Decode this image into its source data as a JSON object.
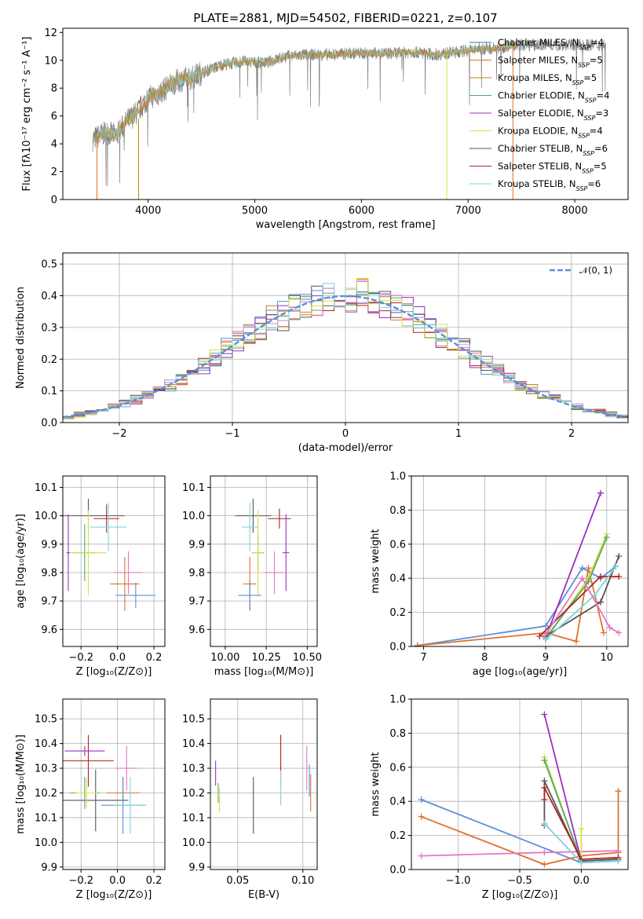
{
  "figure": {
    "title": "PLATE=2881, MJD=54502, FIBERID=0221, z=0.107"
  },
  "colors": {
    "chabrier_miles": "#1f77b4",
    "salpeter_miles": "#e0712a",
    "kroupa_miles": "#b8860b",
    "chabrier_elodie": "#55a868",
    "salpeter_elodie": "#9b30c0",
    "kroupa_elodie": "#d8e040",
    "chabrier_stelib": "#555555",
    "salpeter_stelib": "#b22222",
    "kroupa_stelib": "#7fd3dc",
    "steelblue": "#5b8fd9",
    "pink": "#e377c2",
    "olive": "#b5c94a",
    "dashed_normal": "#5b8fd9"
  },
  "chart_data": [
    {
      "id": "spectrum",
      "type": "line",
      "title": "PLATE=2881, MJD=54502, FIBERID=0221, z=0.107",
      "xlabel": "wavelength [Angstrom, rest frame]",
      "ylabel": "Flux [fλ10⁻¹⁷ erg cm⁻² s⁻¹ A⁻¹]",
      "xlim": [
        3200,
        8500
      ],
      "ylim": [
        0,
        12.3
      ],
      "xticks": [
        "4000",
        "5000",
        "6000",
        "7000",
        "8000"
      ],
      "yticks": [
        "0",
        "2",
        "4",
        "6",
        "8",
        "10",
        "12"
      ],
      "legend_position": "right",
      "series": [
        {
          "name": "Chabrier MILES, N_SSP=4"
        },
        {
          "name": "Salpeter MILES, N_SSP=5"
        },
        {
          "name": "Kroupa MILES, N_SSP=5"
        },
        {
          "name": "Chabrier ELODIE, N_SSP=4"
        },
        {
          "name": "Salpeter ELODIE, N_SSP=3"
        },
        {
          "name": "Kroupa ELODIE, N_SSP=4"
        },
        {
          "name": "Chabrier STELIB, N_SSP=6"
        },
        {
          "name": "Salpeter STELIB, N_SSP=5"
        },
        {
          "name": "Kroupa STELIB, N_SSP=6"
        }
      ],
      "continuum": {
        "x": [
          3480,
          3600,
          3700,
          3800,
          3900,
          4000,
          4100,
          4200,
          4300,
          4400,
          4500,
          4700,
          4900,
          5100,
          5300,
          5500,
          5700,
          5900,
          6100,
          6300,
          6500,
          6700,
          6900,
          7100,
          7300,
          7450
        ],
        "y": [
          4.3,
          4.8,
          4.6,
          5.6,
          6.3,
          7.3,
          7.6,
          8.2,
          8.6,
          8.7,
          9.1,
          9.7,
          9.9,
          9.8,
          10.3,
          10.4,
          10.4,
          10.5,
          10.5,
          10.5,
          10.6,
          10.4,
          10.6,
          10.8,
          10.9,
          11.1
        ]
      }
    },
    {
      "id": "residuals",
      "type": "histogram",
      "xlabel": "(data-model)/error",
      "ylabel": "Normed distribution",
      "xlim": [
        -2.5,
        2.5
      ],
      "ylim": [
        0,
        0.535
      ],
      "xticks": [
        "−2",
        "−1",
        "0",
        "1",
        "2"
      ],
      "yticks": [
        "0.0",
        "0.1",
        "0.2",
        "0.3",
        "0.4",
        "0.5"
      ],
      "legend": "𝒩(0, 1)",
      "normal": {
        "mean": 0,
        "sigma": 1
      },
      "bin_width": 0.1
    },
    {
      "id": "age-vs-Z",
      "type": "errorbar",
      "xlabel": "Z [log₁₀(Z/Z⊙)]",
      "ylabel": "age  [log₁₀(age/yr)]",
      "xlim": [
        -0.3,
        0.26
      ],
      "ylim": [
        9.54,
        10.14
      ],
      "xticks": [
        "−0.2",
        "0.0",
        "0.2"
      ],
      "yticks": [
        "9.6",
        "9.7",
        "9.8",
        "9.9",
        "10.0",
        "10.1"
      ],
      "points": [
        {
          "x": -0.16,
          "y": 10.0,
          "xerr": 0.4,
          "yerr": 0.12,
          "c": "chabrier_stelib"
        },
        {
          "x": -0.06,
          "y": 9.99,
          "xerr": 0.14,
          "yerr": 0.1,
          "c": "salpeter_stelib"
        },
        {
          "x": -0.05,
          "y": 9.96,
          "xerr": 0.2,
          "yerr": 0.17,
          "c": "kroupa_stelib"
        },
        {
          "x": -0.18,
          "y": 9.87,
          "xerr": 0.13,
          "yerr": 0.2,
          "c": "chabrier_elodie"
        },
        {
          "x": -0.27,
          "y": 9.87,
          "xerr": 0.02,
          "yerr": 0.27,
          "c": "salpeter_elodie"
        },
        {
          "x": -0.16,
          "y": 9.87,
          "xerr": 0.2,
          "yerr": 0.3,
          "c": "kroupa_elodie"
        },
        {
          "x": 0.06,
          "y": 9.8,
          "xerr": 0.16,
          "yerr": 0.15,
          "c": "pink"
        },
        {
          "x": 0.04,
          "y": 9.76,
          "xerr": 0.16,
          "yerr": 0.19,
          "c": "salpeter_miles"
        },
        {
          "x": 0.1,
          "y": 9.72,
          "xerr": 0.22,
          "yerr": 0.09,
          "c": "steelblue"
        }
      ]
    },
    {
      "id": "age-vs-mass",
      "type": "errorbar",
      "xlabel": "mass [log₁₀(M/M⊙)]",
      "ylabel": "",
      "xlim": [
        9.91,
        10.56
      ],
      "ylim": [
        9.54,
        10.14
      ],
      "xticks": [
        "10.00",
        "10.25",
        "10.50"
      ],
      "yticks": [
        "9.6",
        "9.7",
        "9.8",
        "9.9",
        "10.0",
        "10.1"
      ],
      "points": [
        {
          "x": 10.17,
          "y": 10.0,
          "xerr": 0.22,
          "yerr": 0.12,
          "c": "chabrier_stelib"
        },
        {
          "x": 10.33,
          "y": 9.99,
          "xerr": 0.14,
          "yerr": 0.07,
          "c": "salpeter_stelib"
        },
        {
          "x": 10.15,
          "y": 9.96,
          "xerr": 0.1,
          "yerr": 0.17,
          "c": "kroupa_stelib"
        },
        {
          "x": 10.2,
          "y": 9.87,
          "xerr": 0.07,
          "yerr": 0.13,
          "c": "chabrier_elodie"
        },
        {
          "x": 10.37,
          "y": 9.87,
          "xerr": 0.04,
          "yerr": 0.27,
          "c": "salpeter_elodie"
        },
        {
          "x": 10.2,
          "y": 9.87,
          "xerr": 0.06,
          "yerr": 0.3,
          "c": "kroupa_elodie"
        },
        {
          "x": 10.3,
          "y": 9.8,
          "xerr": 0.12,
          "yerr": 0.15,
          "c": "pink"
        },
        {
          "x": 10.15,
          "y": 9.76,
          "xerr": 0.08,
          "yerr": 0.19,
          "c": "salpeter_miles"
        },
        {
          "x": 10.15,
          "y": 9.72,
          "xerr": 0.14,
          "yerr": 0.1,
          "c": "steelblue"
        }
      ]
    },
    {
      "id": "weight-vs-age",
      "type": "line",
      "xlabel": "age  [log₁₀(age/yr)]",
      "ylabel": "mass weight",
      "xlim": [
        6.8,
        10.35
      ],
      "ylim": [
        0,
        1.0
      ],
      "xticks": [
        "7",
        "8",
        "9",
        "10"
      ],
      "yticks": [
        "0.0",
        "0.2",
        "0.4",
        "0.6",
        "0.8",
        "1.0"
      ],
      "series": [
        {
          "c": "steelblue",
          "x": [
            6.9,
            9.0,
            9.6,
            9.9,
            10.15
          ],
          "y": [
            0.005,
            0.12,
            0.46,
            0.4,
            0.47
          ]
        },
        {
          "c": "salpeter_miles",
          "x": [
            6.9,
            9.0,
            9.5,
            9.7,
            9.95
          ],
          "y": [
            0.005,
            0.08,
            0.03,
            0.46,
            0.08
          ]
        },
        {
          "c": "salpeter_elodie",
          "x": [
            9.0,
            9.9
          ],
          "y": [
            0.05,
            0.9
          ]
        },
        {
          "c": "kroupa_elodie",
          "x": [
            9.0,
            9.7,
            10.0
          ],
          "y": [
            0.04,
            0.4,
            0.66
          ]
        },
        {
          "c": "chabrier_elodie",
          "x": [
            9.0,
            9.7,
            10.0
          ],
          "y": [
            0.05,
            0.38,
            0.64
          ]
        },
        {
          "c": "chabrier_stelib",
          "x": [
            9.0,
            9.9,
            10.2
          ],
          "y": [
            0.06,
            0.26,
            0.53
          ]
        },
        {
          "c": "salpeter_stelib",
          "x": [
            8.9,
            9.9,
            10.2
          ],
          "y": [
            0.06,
            0.41,
            0.41
          ]
        },
        {
          "c": "kroupa_stelib",
          "x": [
            9.0,
            9.8,
            10.15
          ],
          "y": [
            0.04,
            0.3,
            0.47
          ]
        },
        {
          "c": "pink",
          "x": [
            9.0,
            9.6,
            10.05,
            10.2
          ],
          "y": [
            0.07,
            0.4,
            0.11,
            0.08
          ]
        }
      ]
    },
    {
      "id": "mass-vs-Z",
      "type": "errorbar",
      "xlabel": "Z [log₁₀(Z/Z⊙)]",
      "ylabel": "mass [log₁₀(M/M⊙)]",
      "xlim": [
        -0.3,
        0.26
      ],
      "ylim": [
        9.89,
        10.58
      ],
      "xticks": [
        "−0.2",
        "0.0",
        "0.2"
      ],
      "yticks": [
        "9.9",
        "10.0",
        "10.1",
        "10.2",
        "10.3",
        "10.4",
        "10.5"
      ],
      "points": [
        {
          "x": -0.16,
          "y": 10.33,
          "xerr": 0.28,
          "yerr": 0.21,
          "c": "salpeter_stelib"
        },
        {
          "x": -0.12,
          "y": 10.17,
          "xerr": 0.36,
          "yerr": 0.25,
          "c": "chabrier_stelib"
        },
        {
          "x": -0.18,
          "y": 10.37,
          "xerr": 0.22,
          "yerr": 0.04,
          "c": "salpeter_elodie"
        },
        {
          "x": -0.18,
          "y": 10.2,
          "xerr": 0.16,
          "yerr": 0.13,
          "c": "chabrier_elodie"
        },
        {
          "x": -0.17,
          "y": 10.2,
          "xerr": 0.12,
          "yerr": 0.12,
          "c": "kroupa_elodie"
        },
        {
          "x": 0.05,
          "y": 10.3,
          "xerr": 0.12,
          "yerr": 0.18,
          "c": "pink"
        },
        {
          "x": 0.03,
          "y": 10.2,
          "xerr": 0.18,
          "yerr": 0.12,
          "c": "salpeter_miles"
        },
        {
          "x": 0.03,
          "y": 10.15,
          "xerr": 0.24,
          "yerr": 0.23,
          "c": "steelblue"
        },
        {
          "x": 0.07,
          "y": 10.15,
          "xerr": 0.18,
          "yerr": 0.23,
          "c": "kroupa_stelib"
        }
      ]
    },
    {
      "id": "mass-vs-EBV",
      "type": "errorbar",
      "xlabel": "E(B-V)",
      "ylabel": "",
      "xlim": [
        0.029,
        0.111
      ],
      "ylim": [
        9.89,
        10.58
      ],
      "xticks": [
        "0.05",
        "0.10"
      ],
      "yticks": [
        "9.9",
        "10.0",
        "10.1",
        "10.2",
        "10.3",
        "10.4",
        "10.5"
      ],
      "points": [
        {
          "x": 0.033,
          "y": 10.28,
          "yerr": 0.1,
          "c": "salpeter_elodie"
        },
        {
          "x": 0.035,
          "y": 10.2,
          "yerr": 0.08,
          "c": "chabrier_elodie"
        },
        {
          "x": 0.036,
          "y": 10.17,
          "yerr": 0.1,
          "c": "kroupa_elodie"
        },
        {
          "x": 0.062,
          "y": 10.15,
          "yerr": 0.23,
          "c": "chabrier_stelib"
        },
        {
          "x": 0.083,
          "y": 10.33,
          "yerr": 0.21,
          "c": "salpeter_stelib"
        },
        {
          "x": 0.083,
          "y": 10.22,
          "yerr": 0.14,
          "c": "kroupa_stelib"
        },
        {
          "x": 0.103,
          "y": 10.3,
          "yerr": 0.18,
          "c": "pink"
        },
        {
          "x": 0.106,
          "y": 10.2,
          "yerr": 0.15,
          "c": "salpeter_miles"
        },
        {
          "x": 0.105,
          "y": 10.25,
          "yerr": 0.13,
          "c": "steelblue"
        }
      ]
    },
    {
      "id": "weight-vs-Z",
      "type": "line",
      "xlabel": "Z [log₁₀(Z/Z⊙)]",
      "ylabel": "mass weight",
      "xlim": [
        -1.38,
        0.38
      ],
      "ylim": [
        0,
        1.0
      ],
      "xticks": [
        "−1.0",
        "−0.5",
        "0.0"
      ],
      "yticks": [
        "0.0",
        "0.2",
        "0.4",
        "0.6",
        "0.8",
        "1.0"
      ],
      "series": [
        {
          "c": "steelblue",
          "x": [
            -1.3,
            0.0,
            0.3
          ],
          "y": [
            0.41,
            0.04,
            0.05
          ]
        },
        {
          "c": "salpeter_miles",
          "x": [
            -1.3,
            -0.3,
            0.0,
            0.3,
            0.3
          ],
          "y": [
            0.31,
            0.03,
            0.08,
            0.1,
            0.46
          ]
        },
        {
          "c": "pink",
          "x": [
            -1.3,
            -0.3,
            0.3
          ],
          "y": [
            0.08,
            0.1,
            0.11
          ]
        },
        {
          "c": "salpeter_elodie",
          "x": [
            -0.3,
            0.0
          ],
          "y": [
            0.91,
            0.05
          ]
        },
        {
          "c": "kroupa_elodie",
          "x": [
            -0.3,
            0.0,
            0.0
          ],
          "y": [
            0.66,
            0.04,
            0.24
          ]
        },
        {
          "c": "chabrier_elodie",
          "x": [
            -0.3,
            0.0
          ],
          "y": [
            0.64,
            0.05
          ]
        },
        {
          "c": "chabrier_stelib",
          "x": [
            -0.3,
            -0.3,
            0.0,
            0.3
          ],
          "y": [
            0.26,
            0.52,
            0.05,
            0.06
          ]
        },
        {
          "c": "salpeter_stelib",
          "x": [
            -0.3,
            -0.3,
            0.0,
            0.3
          ],
          "y": [
            0.41,
            0.48,
            0.06,
            0.07
          ]
        },
        {
          "c": "kroupa_stelib",
          "x": [
            -0.3,
            0.0,
            0.3
          ],
          "y": [
            0.27,
            0.04,
            0.05
          ]
        }
      ]
    }
  ]
}
